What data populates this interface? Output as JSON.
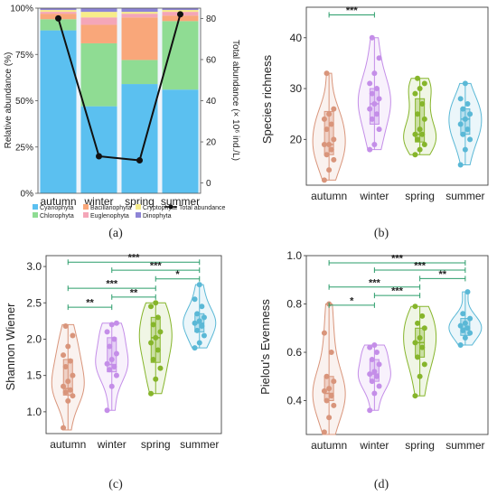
{
  "chart_data": [
    {
      "panel": "(a)",
      "type": "bar",
      "stacked": true,
      "categories": [
        "autumn",
        "winter",
        "spring",
        "summer"
      ],
      "ylabel": "Relative abundance (%)",
      "y2label": "Total abundance (× 10⁶ ind./L)",
      "y_ticks": [
        "0%",
        "25%",
        "50%",
        "75%",
        "100%"
      ],
      "y2_ticks": [
        "0",
        "20",
        "40",
        "60",
        "80"
      ],
      "ylim": [
        0,
        100
      ],
      "y2lim": [
        -5,
        85
      ],
      "series": [
        {
          "name": "Cyanophyta",
          "color": "#5bc0f0",
          "values": [
            88,
            47,
            59,
            56
          ]
        },
        {
          "name": "Chlorophyta",
          "color": "#8fdc93",
          "values": [
            6,
            34,
            13,
            37
          ]
        },
        {
          "name": "Bacillariophyta",
          "color": "#f9a77a",
          "values": [
            3,
            10,
            23,
            3
          ]
        },
        {
          "name": "Euglenophyta",
          "color": "#f4a6b8",
          "values": [
            1,
            4,
            2,
            2
          ]
        },
        {
          "name": "Cryptophyta",
          "color": "#f7ec8a",
          "values": [
            1,
            3,
            1,
            1
          ]
        },
        {
          "name": "Dinophyta",
          "color": "#8d84d6",
          "values": [
            1,
            2,
            2,
            1
          ]
        }
      ],
      "line": {
        "name": "Total abundance",
        "color": "#111111",
        "values": [
          80,
          13,
          11,
          82
        ]
      }
    },
    {
      "panel": "(b)",
      "type": "violin",
      "categories": [
        "autumn",
        "winter",
        "spring",
        "summer"
      ],
      "ylabel": "Species richness",
      "ylim": [
        11,
        46
      ],
      "y_ticks": [
        "20",
        "30",
        "40"
      ],
      "colors": [
        "#d9957b",
        "#c48ee8",
        "#86b52b",
        "#5ab8d6"
      ],
      "points": [
        [
          12,
          14,
          16,
          17,
          18,
          19,
          19,
          20,
          22,
          23,
          24,
          25,
          26,
          33
        ],
        [
          18,
          19,
          22,
          24,
          25,
          26,
          27,
          28,
          29,
          30,
          31,
          33,
          36,
          40
        ],
        [
          17,
          18,
          19,
          20,
          21,
          21,
          22,
          24,
          25,
          27,
          29,
          30,
          31,
          32
        ],
        [
          15,
          18,
          20,
          21,
          22,
          23,
          24,
          25,
          26,
          27,
          28,
          31
        ]
      ],
      "box": [
        [
          17,
          19,
          25.5
        ],
        [
          23,
          27,
          30
        ],
        [
          19.5,
          21,
          28
        ],
        [
          21,
          24,
          26
        ]
      ],
      "range": [
        [
          12,
          33
        ],
        [
          18,
          40
        ],
        [
          17,
          32
        ],
        [
          15,
          31
        ]
      ],
      "significance": [
        {
          "from": 0,
          "to": 1,
          "label": "***",
          "y": 44.5
        }
      ]
    },
    {
      "panel": "(c)",
      "type": "violin",
      "categories": [
        "autumn",
        "winter",
        "spring",
        "summer"
      ],
      "ylabel": "Shannon Wiener",
      "ylim": [
        0.7,
        3.15
      ],
      "y_ticks": [
        "1.0",
        "1.5",
        "2.0",
        "2.5",
        "3.0"
      ],
      "colors": [
        "#d9957b",
        "#c48ee8",
        "#86b52b",
        "#5ab8d6"
      ],
      "points": [
        [
          0.78,
          1.15,
          1.22,
          1.27,
          1.3,
          1.35,
          1.42,
          1.5,
          1.62,
          1.7,
          1.78,
          1.9,
          2.05,
          2.18
        ],
        [
          1.02,
          1.35,
          1.5,
          1.58,
          1.62,
          1.66,
          1.72,
          1.8,
          1.9,
          2.0,
          2.1,
          2.2,
          2.22
        ],
        [
          1.25,
          1.45,
          1.6,
          1.72,
          1.85,
          1.95,
          2.02,
          2.1,
          2.2,
          2.3,
          2.45,
          2.5
        ],
        [
          1.88,
          1.95,
          2.05,
          2.12,
          2.18,
          2.22,
          2.25,
          2.3,
          2.35,
          2.45,
          2.55,
          2.75
        ]
      ],
      "box": [
        [
          1.23,
          1.32,
          1.72
        ],
        [
          1.55,
          1.65,
          2.02
        ],
        [
          1.68,
          2.02,
          2.3
        ],
        [
          2.1,
          2.22,
          2.35
        ]
      ],
      "range": [
        [
          0.75,
          2.2
        ],
        [
          1.02,
          2.22
        ],
        [
          1.25,
          2.5
        ],
        [
          1.88,
          2.75
        ]
      ],
      "significance": [
        {
          "from": 0,
          "to": 3,
          "label": "***",
          "y": 3.06
        },
        {
          "from": 1,
          "to": 3,
          "label": "***",
          "y": 2.95
        },
        {
          "from": 2,
          "to": 3,
          "label": "*",
          "y": 2.83
        },
        {
          "from": 0,
          "to": 2,
          "label": "***",
          "y": 2.7
        },
        {
          "from": 1,
          "to": 2,
          "label": "**",
          "y": 2.58
        },
        {
          "from": 0,
          "to": 1,
          "label": "**",
          "y": 2.44
        }
      ]
    },
    {
      "panel": "(d)",
      "type": "violin",
      "categories": [
        "autumn",
        "winter",
        "spring",
        "summer"
      ],
      "ylabel": "Pielou's Evenness",
      "ylim": [
        0.26,
        1.0
      ],
      "y_ticks": [
        "0.4",
        "0.6",
        "0.8",
        "1.0"
      ],
      "colors": [
        "#d9957b",
        "#c48ee8",
        "#86b52b",
        "#5ab8d6"
      ],
      "points": [
        [
          0.27,
          0.33,
          0.38,
          0.4,
          0.42,
          0.44,
          0.45,
          0.48,
          0.5,
          0.6,
          0.68,
          0.8
        ],
        [
          0.36,
          0.43,
          0.46,
          0.48,
          0.5,
          0.51,
          0.52,
          0.55,
          0.57,
          0.6,
          0.62,
          0.63
        ],
        [
          0.42,
          0.5,
          0.55,
          0.58,
          0.62,
          0.64,
          0.66,
          0.7,
          0.72,
          0.75,
          0.79
        ],
        [
          0.63,
          0.66,
          0.68,
          0.69,
          0.7,
          0.71,
          0.72,
          0.74,
          0.76,
          0.85
        ]
      ],
      "box": [
        [
          0.4,
          0.43,
          0.5
        ],
        [
          0.48,
          0.51,
          0.57
        ],
        [
          0.58,
          0.64,
          0.7
        ],
        [
          0.67,
          0.7,
          0.74
        ]
      ],
      "range": [
        [
          0.26,
          0.8
        ],
        [
          0.36,
          0.63
        ],
        [
          0.42,
          0.79
        ],
        [
          0.63,
          0.85
        ]
      ],
      "significance": [
        {
          "from": 0,
          "to": 3,
          "label": "***",
          "y": 0.97
        },
        {
          "from": 1,
          "to": 3,
          "label": "***",
          "y": 0.94
        },
        {
          "from": 2,
          "to": 3,
          "label": "**",
          "y": 0.905
        },
        {
          "from": 0,
          "to": 2,
          "label": "***",
          "y": 0.87
        },
        {
          "from": 1,
          "to": 2,
          "label": "***",
          "y": 0.835
        },
        {
          "from": 0,
          "to": 1,
          "label": "*",
          "y": 0.795
        }
      ]
    }
  ]
}
